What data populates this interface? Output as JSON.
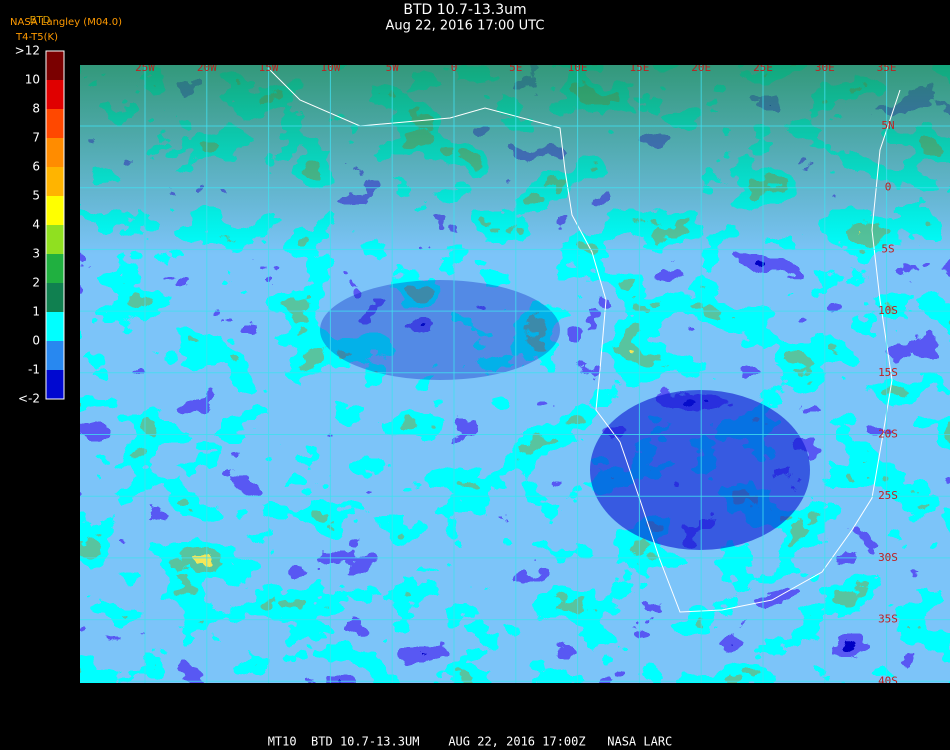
{
  "header": {
    "title": "BTD 10.7-13.3um",
    "subtitle": "Aug 22, 2016 17:00 UTC",
    "source": "NASA Langley (M04.0)",
    "product": "BTD",
    "unit": "T4-T5(K)"
  },
  "colorbar": {
    "labels": [
      ">12",
      "10",
      "8",
      "7",
      "6",
      "5",
      "4",
      "3",
      "2",
      "1",
      "0",
      "-1",
      "<-2"
    ]
  },
  "map": {
    "longitude_labels": [
      "25W",
      "20W",
      "15W",
      "10W",
      "5W",
      "0",
      "5E",
      "10E",
      "15E",
      "20E",
      "25E",
      "30E",
      "35E"
    ],
    "latitude_labels": [
      "5N",
      "0",
      "5S",
      "10S",
      "15S",
      "20S",
      "25S",
      "30S",
      "35S",
      "40S"
    ]
  },
  "footer": {
    "text": "MT10  BTD 10.7-13.3UM    AUG 22, 2016 17:00Z   NASA LARC"
  }
}
